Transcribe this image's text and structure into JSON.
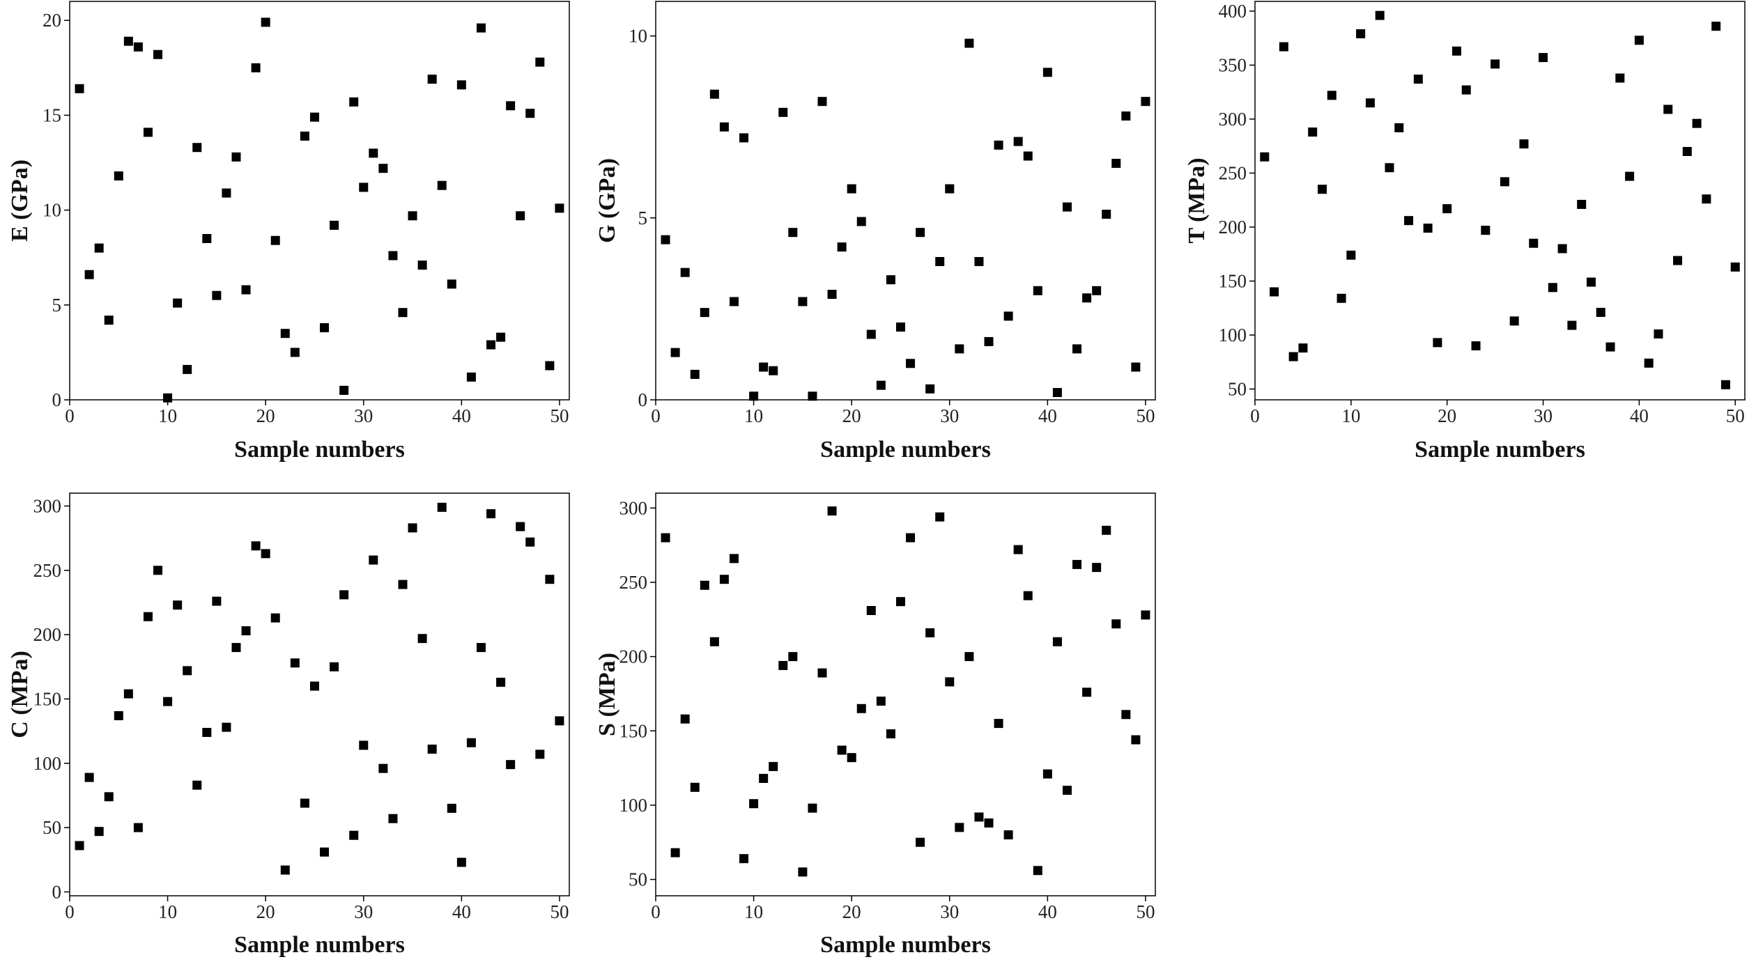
{
  "chart_data": [
    {
      "type": "scatter",
      "x_label": "Sample numbers",
      "y_label": "E (GPa)",
      "color": "#000000",
      "xlim": [
        0,
        51
      ],
      "xticks": [
        0,
        10,
        20,
        30,
        40,
        50
      ],
      "ylim": [
        0,
        21
      ],
      "yticks": [
        0,
        5,
        10,
        15,
        20
      ],
      "x": [
        1,
        2,
        3,
        4,
        5,
        6,
        7,
        8,
        9,
        10,
        11,
        12,
        13,
        14,
        15,
        16,
        17,
        18,
        19,
        20,
        21,
        22,
        23,
        24,
        25,
        26,
        27,
        28,
        29,
        30,
        31,
        32,
        33,
        34,
        35,
        36,
        37,
        38,
        39,
        40,
        41,
        42,
        43,
        44,
        45,
        46,
        47,
        48,
        49,
        50
      ],
      "values": [
        16.4,
        6.6,
        8.0,
        4.2,
        11.8,
        18.9,
        18.6,
        14.1,
        18.2,
        0.1,
        5.1,
        1.6,
        13.3,
        8.5,
        5.5,
        10.9,
        12.8,
        5.8,
        17.5,
        19.9,
        8.4,
        3.5,
        2.5,
        13.9,
        14.9,
        3.8,
        9.2,
        0.5,
        15.7,
        11.2,
        13.0,
        12.2,
        7.6,
        4.6,
        9.7,
        7.1,
        16.9,
        11.3,
        6.1,
        16.6,
        1.2,
        19.6,
        2.9,
        3.3,
        15.5,
        9.7,
        15.1,
        17.8,
        1.8,
        10.1
      ]
    },
    {
      "type": "scatter",
      "x_label": "Sample numbers",
      "y_label": "G (GPa)",
      "color": "#000000",
      "xlim": [
        0,
        51
      ],
      "xticks": [
        0,
        10,
        20,
        30,
        40,
        50
      ],
      "ylim": [
        0,
        10.95
      ],
      "yticks": [
        0,
        5,
        10
      ],
      "x": [
        1,
        2,
        3,
        4,
        5,
        6,
        7,
        8,
        9,
        10,
        11,
        12,
        13,
        14,
        15,
        16,
        17,
        18,
        19,
        20,
        21,
        22,
        23,
        24,
        25,
        26,
        27,
        28,
        29,
        30,
        31,
        32,
        33,
        34,
        35,
        36,
        37,
        38,
        39,
        40,
        41,
        42,
        43,
        44,
        45,
        46,
        47,
        48,
        49,
        50
      ],
      "values": [
        4.4,
        1.3,
        3.5,
        0.7,
        2.4,
        8.4,
        7.5,
        2.7,
        7.2,
        0.1,
        0.9,
        0.8,
        7.9,
        4.6,
        2.7,
        0.1,
        8.2,
        2.9,
        4.2,
        5.8,
        4.9,
        1.8,
        0.4,
        3.3,
        2.0,
        1.0,
        4.6,
        0.3,
        3.8,
        5.8,
        1.4,
        9.8,
        3.8,
        1.6,
        7.0,
        2.3,
        7.1,
        6.7,
        3.0,
        9.0,
        0.2,
        5.3,
        1.4,
        2.8,
        3.0,
        5.1,
        6.5,
        7.8,
        0.9,
        8.2
      ]
    },
    {
      "type": "scatter",
      "x_label": "Sample numbers",
      "y_label": "T (MPa)",
      "color": "#000000",
      "xlim": [
        0,
        51
      ],
      "xticks": [
        0,
        10,
        20,
        30,
        40,
        50
      ],
      "ylim": [
        40,
        409
      ],
      "yticks": [
        50,
        100,
        150,
        200,
        250,
        300,
        350,
        400
      ],
      "x": [
        1,
        2,
        3,
        4,
        5,
        6,
        7,
        8,
        9,
        10,
        11,
        12,
        13,
        14,
        15,
        16,
        17,
        18,
        19,
        20,
        21,
        22,
        23,
        24,
        25,
        26,
        27,
        28,
        29,
        30,
        31,
        32,
        33,
        34,
        35,
        36,
        37,
        38,
        39,
        40,
        41,
        42,
        43,
        44,
        45,
        46,
        47,
        48,
        49,
        50
      ],
      "values": [
        265,
        140,
        367,
        80,
        88,
        288,
        235,
        322,
        134,
        174,
        379,
        315,
        396,
        255,
        292,
        206,
        337,
        199,
        93,
        217,
        363,
        327,
        90,
        197,
        351,
        242,
        113,
        277,
        185,
        357,
        144,
        180,
        109,
        221,
        149,
        121,
        89,
        338,
        247,
        373,
        74,
        101,
        309,
        169,
        270,
        296,
        226,
        386,
        54,
        163
      ]
    },
    {
      "type": "scatter",
      "x_label": "Sample numbers",
      "y_label": "C (MPa)",
      "color": "#000000",
      "xlim": [
        0,
        51
      ],
      "xticks": [
        0,
        10,
        20,
        30,
        40,
        50
      ],
      "ylim": [
        -3,
        310
      ],
      "yticks": [
        0,
        50,
        100,
        150,
        200,
        250,
        300
      ],
      "x": [
        1,
        2,
        3,
        4,
        5,
        6,
        7,
        8,
        9,
        10,
        11,
        12,
        13,
        14,
        15,
        16,
        17,
        18,
        19,
        20,
        21,
        22,
        23,
        24,
        25,
        26,
        27,
        28,
        29,
        30,
        31,
        32,
        33,
        34,
        35,
        36,
        37,
        38,
        39,
        40,
        41,
        42,
        43,
        44,
        45,
        46,
        47,
        48,
        49,
        50
      ],
      "values": [
        36,
        89,
        47,
        74,
        137,
        154,
        50,
        214,
        250,
        148,
        223,
        172,
        83,
        124,
        226,
        128,
        190,
        203,
        269,
        263,
        213,
        17,
        178,
        69,
        160,
        31,
        175,
        231,
        44,
        114,
        258,
        96,
        57,
        239,
        283,
        197,
        111,
        299,
        65,
        23,
        116,
        190,
        294,
        163,
        99,
        284,
        272,
        107,
        243,
        133
      ]
    },
    {
      "type": "scatter",
      "x_label": "Sample numbers",
      "y_label": "S (MPa)",
      "color": "#000000",
      "xlim": [
        0,
        51
      ],
      "xticks": [
        0,
        10,
        20,
        30,
        40,
        50
      ],
      "ylim": [
        39,
        310
      ],
      "yticks": [
        50,
        100,
        150,
        200,
        250,
        300
      ],
      "x": [
        1,
        2,
        3,
        4,
        5,
        6,
        7,
        8,
        9,
        10,
        11,
        12,
        13,
        14,
        15,
        16,
        17,
        18,
        19,
        20,
        21,
        22,
        23,
        24,
        25,
        26,
        27,
        28,
        29,
        30,
        31,
        32,
        33,
        34,
        35,
        36,
        37,
        38,
        39,
        40,
        41,
        42,
        43,
        44,
        45,
        46,
        47,
        48,
        49,
        50
      ],
      "values": [
        280,
        68,
        158,
        112,
        248,
        210,
        252,
        266,
        64,
        101,
        118,
        126,
        194,
        200,
        55,
        98,
        189,
        298,
        137,
        132,
        165,
        231,
        170,
        148,
        237,
        280,
        75,
        216,
        294,
        183,
        85,
        200,
        92,
        88,
        155,
        80,
        272,
        241,
        56,
        121,
        210,
        110,
        262,
        176,
        260,
        285,
        222,
        161,
        144,
        228
      ]
    }
  ]
}
